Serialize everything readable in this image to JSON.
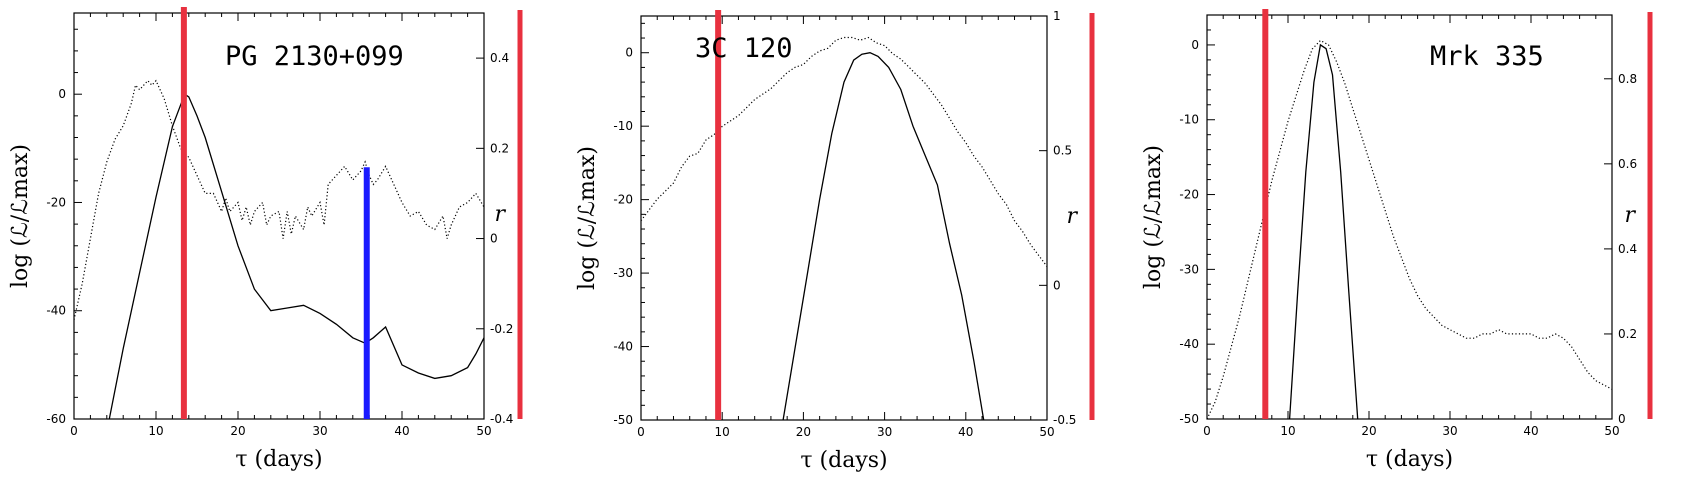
{
  "chart_data": [
    {
      "type": "line",
      "title": "PG 2130+099",
      "xlabel": "τ (days)",
      "ylabel": "log (ℒ/ℒmax)",
      "y2label": "r",
      "xlim": [
        0,
        50
      ],
      "ylim": [
        -60,
        15
      ],
      "y2lim": [
        -0.4,
        0.5
      ],
      "xticks": [
        0,
        10,
        20,
        30,
        40,
        50
      ],
      "yticks": [
        0,
        -20,
        -40,
        -60
      ],
      "y2ticks": [
        0.4,
        0.2,
        0,
        -0.2,
        -0.4
      ],
      "y2ticklabels": [
        "0.4",
        "0.2",
        "0",
        "-0.2",
        "-0.4"
      ],
      "markers": [
        {
          "x": 13.4,
          "color": "#e8313f"
        },
        {
          "x": 35.7,
          "color": "#1a1aff",
          "y_from": -13.5,
          "y_to": -60
        }
      ],
      "series": [
        {
          "style": "solid",
          "axis": "left",
          "x": [
            4.3,
            6,
            8,
            10,
            12,
            13.5,
            14,
            15,
            16,
            18,
            20,
            22,
            24,
            26,
            28,
            30,
            32,
            34,
            35.5,
            36.5,
            38,
            40,
            42,
            44,
            46,
            48,
            49,
            50
          ],
          "y": [
            -60,
            -47,
            -33,
            -19,
            -6,
            0,
            -0.5,
            -4,
            -8,
            -18,
            -28,
            -36,
            -40,
            -39.5,
            -39,
            -40.5,
            -42.5,
            -45,
            -46,
            -45,
            -43,
            -50,
            -51.5,
            -52.5,
            -52,
            -50.5,
            -48,
            -45
          ]
        },
        {
          "style": "dotted",
          "axis": "right",
          "x": [
            0,
            1,
            2,
            3,
            4,
            5,
            6,
            7,
            7.5,
            8,
            9,
            9.5,
            10,
            10.5,
            11,
            12,
            13,
            14,
            15,
            16,
            17,
            18,
            18.5,
            19,
            20,
            20.5,
            21,
            21.5,
            22,
            23,
            23.5,
            24,
            25,
            25.5,
            26,
            26.5,
            27,
            28,
            28.5,
            29,
            30,
            30.5,
            31,
            32,
            33,
            34,
            35,
            35.5,
            36,
            36.5,
            37,
            38,
            39,
            40,
            41,
            42,
            43,
            44,
            45,
            45.5,
            46,
            47,
            48,
            49,
            50
          ],
          "y": [
            -0.18,
            -0.1,
            0.0,
            0.1,
            0.17,
            0.22,
            0.25,
            0.3,
            0.34,
            0.33,
            0.35,
            0.34,
            0.35,
            0.33,
            0.31,
            0.25,
            0.2,
            0.18,
            0.14,
            0.1,
            0.1,
            0.06,
            0.09,
            0.06,
            0.08,
            0.04,
            0.07,
            0.03,
            0.06,
            0.08,
            0.03,
            0.05,
            0.06,
            0.0,
            0.06,
            0.01,
            0.05,
            0.02,
            0.07,
            0.05,
            0.08,
            0.03,
            0.12,
            0.14,
            0.16,
            0.13,
            0.15,
            0.17,
            0.14,
            0.12,
            0.13,
            0.16,
            0.12,
            0.08,
            0.05,
            0.06,
            0.03,
            0.02,
            0.05,
            0.0,
            0.03,
            0.07,
            0.08,
            0.1,
            0.07
          ]
        }
      ]
    },
    {
      "type": "line",
      "title": "3C 120",
      "xlabel": "τ (days)",
      "ylabel": "log (ℒ/ℒmax)",
      "y2label": "r",
      "xlim": [
        0,
        50
      ],
      "ylim": [
        -50,
        5
      ],
      "y2lim": [
        -0.5,
        1
      ],
      "xticks": [
        0,
        10,
        20,
        30,
        40,
        50
      ],
      "yticks": [
        0,
        -10,
        -20,
        -30,
        -40,
        -50
      ],
      "y2ticks": [
        1,
        0.5,
        0,
        -0.5
      ],
      "y2ticklabels": [
        "1",
        "0.5",
        "0",
        "-0.5"
      ],
      "markers": [
        {
          "x": 9.5,
          "color": "#e8313f"
        }
      ],
      "series": [
        {
          "style": "solid",
          "axis": "left",
          "x": [
            17.5,
            19,
            20.5,
            22,
            23.5,
            25,
            26.2,
            27.2,
            28.2,
            29.2,
            30.5,
            32,
            33.5,
            35,
            36.5,
            38,
            39.5,
            41,
            42.2
          ],
          "y": [
            -50,
            -40,
            -30,
            -20,
            -11,
            -4,
            -1,
            -0.2,
            0,
            -0.5,
            -2,
            -5,
            -10,
            -14,
            -18,
            -26,
            -33,
            -42,
            -50
          ]
        },
        {
          "style": "dotted",
          "axis": "right",
          "x": [
            0,
            1,
            2,
            3,
            4,
            5,
            6,
            7,
            8,
            9,
            10,
            11,
            12,
            13,
            14,
            15,
            16,
            17,
            18,
            19,
            20,
            21,
            22,
            23,
            24,
            25,
            26,
            27,
            28,
            29,
            30,
            31,
            32,
            33,
            34,
            35,
            36,
            37,
            38,
            39,
            40,
            41,
            42,
            43,
            44,
            45,
            46,
            47,
            48,
            49,
            50
          ],
          "y": [
            0.24,
            0.28,
            0.32,
            0.35,
            0.38,
            0.44,
            0.48,
            0.49,
            0.54,
            0.56,
            0.59,
            0.61,
            0.63,
            0.66,
            0.69,
            0.71,
            0.73,
            0.76,
            0.79,
            0.81,
            0.82,
            0.85,
            0.87,
            0.88,
            0.91,
            0.92,
            0.92,
            0.91,
            0.92,
            0.9,
            0.89,
            0.86,
            0.84,
            0.81,
            0.78,
            0.75,
            0.71,
            0.67,
            0.62,
            0.57,
            0.53,
            0.48,
            0.44,
            0.39,
            0.34,
            0.3,
            0.24,
            0.2,
            0.15,
            0.11,
            0.07
          ]
        }
      ]
    },
    {
      "type": "line",
      "title": "Mrk 335",
      "xlabel": "τ (days)",
      "ylabel": "log (ℒ/ℒmax)",
      "y2label": "r",
      "xlim": [
        0,
        50
      ],
      "ylim": [
        -50,
        4
      ],
      "y2lim": [
        0,
        0.95
      ],
      "xticks": [
        0,
        10,
        20,
        30,
        40,
        50
      ],
      "yticks": [
        0,
        -10,
        -20,
        -30,
        -40,
        -50
      ],
      "y2ticks": [
        0.8,
        0.6,
        0.4,
        0.2,
        0
      ],
      "y2ticklabels": [
        "0.8",
        "0.6",
        "0.4",
        "0.2",
        "0"
      ],
      "markers": [
        {
          "x": 7.2,
          "color": "#e8313f"
        }
      ],
      "series": [
        {
          "style": "solid",
          "axis": "left",
          "x": [
            10.2,
            11.2,
            12.2,
            13.2,
            14,
            14.7,
            15.5,
            16.5,
            17.5,
            18.6
          ],
          "y": [
            -50,
            -33,
            -17,
            -5,
            0,
            -0.5,
            -4,
            -17,
            -33,
            -50
          ]
        },
        {
          "style": "dotted",
          "axis": "right",
          "x": [
            0,
            1,
            2,
            3,
            4,
            5,
            6,
            7,
            8,
            9,
            10,
            11,
            12,
            13,
            14,
            15,
            16,
            17,
            18,
            19,
            20,
            21,
            22,
            23,
            24,
            25,
            26,
            27,
            28,
            29,
            30,
            31,
            32,
            33,
            34,
            35,
            36,
            37,
            38,
            39,
            40,
            41,
            42,
            43,
            44,
            45,
            46,
            47,
            48,
            49,
            50
          ],
          "y": [
            0.0,
            0.04,
            0.1,
            0.17,
            0.24,
            0.32,
            0.4,
            0.48,
            0.56,
            0.63,
            0.7,
            0.76,
            0.82,
            0.87,
            0.89,
            0.88,
            0.84,
            0.79,
            0.73,
            0.67,
            0.61,
            0.55,
            0.49,
            0.43,
            0.38,
            0.33,
            0.29,
            0.26,
            0.24,
            0.22,
            0.21,
            0.2,
            0.19,
            0.19,
            0.2,
            0.2,
            0.21,
            0.2,
            0.2,
            0.2,
            0.2,
            0.19,
            0.19,
            0.2,
            0.19,
            0.17,
            0.14,
            0.11,
            0.09,
            0.08,
            0.07
          ]
        }
      ]
    }
  ]
}
